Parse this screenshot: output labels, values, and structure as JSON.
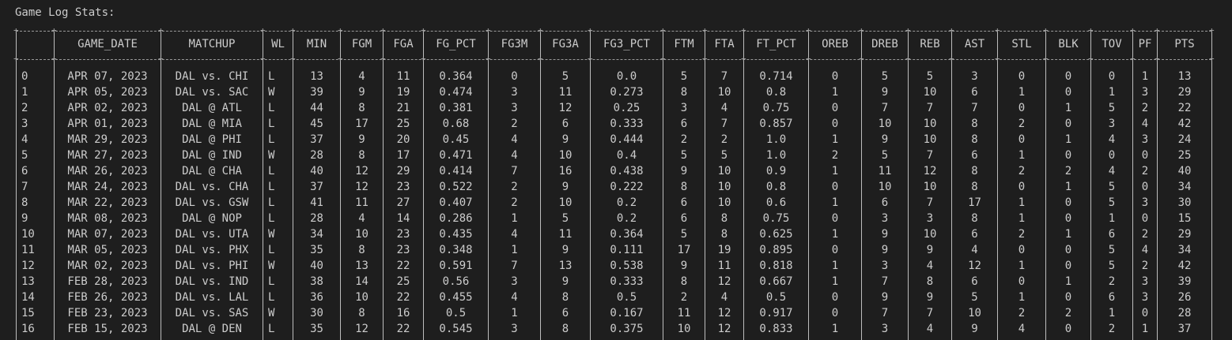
{
  "title": "Game Log Stats:",
  "columns": [
    "",
    "GAME_DATE",
    "MATCHUP",
    "WL",
    "MIN",
    "FGM",
    "FGA",
    "FG_PCT",
    "FG3M",
    "FG3A",
    "FG3_PCT",
    "FTM",
    "FTA",
    "FT_PCT",
    "OREB",
    "DREB",
    "REB",
    "AST",
    "STL",
    "BLK",
    "TOV",
    "PF",
    "PTS"
  ],
  "rows": [
    [
      "0",
      "APR 07, 2023",
      "DAL vs. CHI",
      "L",
      "13",
      "4",
      "11",
      "0.364",
      "0",
      "5",
      "0.0",
      "5",
      "7",
      "0.714",
      "0",
      "5",
      "5",
      "3",
      "0",
      "0",
      "0",
      "1",
      "13"
    ],
    [
      "1",
      "APR 05, 2023",
      "DAL vs. SAC",
      "W",
      "39",
      "9",
      "19",
      "0.474",
      "3",
      "11",
      "0.273",
      "8",
      "10",
      "0.8",
      "1",
      "9",
      "10",
      "6",
      "1",
      "0",
      "1",
      "3",
      "29"
    ],
    [
      "2",
      "APR 02, 2023",
      "DAL @ ATL",
      "L",
      "44",
      "8",
      "21",
      "0.381",
      "3",
      "12",
      "0.25",
      "3",
      "4",
      "0.75",
      "0",
      "7",
      "7",
      "7",
      "0",
      "1",
      "5",
      "2",
      "22"
    ],
    [
      "3",
      "APR 01, 2023",
      "DAL @ MIA",
      "L",
      "45",
      "17",
      "25",
      "0.68",
      "2",
      "6",
      "0.333",
      "6",
      "7",
      "0.857",
      "0",
      "10",
      "10",
      "8",
      "2",
      "0",
      "3",
      "4",
      "42"
    ],
    [
      "4",
      "MAR 29, 2023",
      "DAL @ PHI",
      "L",
      "37",
      "9",
      "20",
      "0.45",
      "4",
      "9",
      "0.444",
      "2",
      "2",
      "1.0",
      "1",
      "9",
      "10",
      "8",
      "0",
      "1",
      "4",
      "3",
      "24"
    ],
    [
      "5",
      "MAR 27, 2023",
      "DAL @ IND",
      "W",
      "28",
      "8",
      "17",
      "0.471",
      "4",
      "10",
      "0.4",
      "5",
      "5",
      "1.0",
      "2",
      "5",
      "7",
      "6",
      "1",
      "0",
      "0",
      "0",
      "25"
    ],
    [
      "6",
      "MAR 26, 2023",
      "DAL @ CHA",
      "L",
      "40",
      "12",
      "29",
      "0.414",
      "7",
      "16",
      "0.438",
      "9",
      "10",
      "0.9",
      "1",
      "11",
      "12",
      "8",
      "2",
      "2",
      "4",
      "2",
      "40"
    ],
    [
      "7",
      "MAR 24, 2023",
      "DAL vs. CHA",
      "L",
      "37",
      "12",
      "23",
      "0.522",
      "2",
      "9",
      "0.222",
      "8",
      "10",
      "0.8",
      "0",
      "10",
      "10",
      "8",
      "0",
      "1",
      "5",
      "0",
      "34"
    ],
    [
      "8",
      "MAR 22, 2023",
      "DAL vs. GSW",
      "L",
      "41",
      "11",
      "27",
      "0.407",
      "2",
      "10",
      "0.2",
      "6",
      "10",
      "0.6",
      "1",
      "6",
      "7",
      "17",
      "1",
      "0",
      "5",
      "3",
      "30"
    ],
    [
      "9",
      "MAR 08, 2023",
      "DAL @ NOP",
      "L",
      "28",
      "4",
      "14",
      "0.286",
      "1",
      "5",
      "0.2",
      "6",
      "8",
      "0.75",
      "0",
      "3",
      "3",
      "8",
      "1",
      "0",
      "1",
      "0",
      "15"
    ],
    [
      "10",
      "MAR 07, 2023",
      "DAL vs. UTA",
      "W",
      "34",
      "10",
      "23",
      "0.435",
      "4",
      "11",
      "0.364",
      "5",
      "8",
      "0.625",
      "1",
      "9",
      "10",
      "6",
      "2",
      "1",
      "6",
      "2",
      "29"
    ],
    [
      "11",
      "MAR 05, 2023",
      "DAL vs. PHX",
      "L",
      "35",
      "8",
      "23",
      "0.348",
      "1",
      "9",
      "0.111",
      "17",
      "19",
      "0.895",
      "0",
      "9",
      "9",
      "4",
      "0",
      "0",
      "5",
      "4",
      "34"
    ],
    [
      "12",
      "MAR 02, 2023",
      "DAL vs. PHI",
      "W",
      "40",
      "13",
      "22",
      "0.591",
      "7",
      "13",
      "0.538",
      "9",
      "11",
      "0.818",
      "1",
      "3",
      "4",
      "12",
      "1",
      "0",
      "5",
      "2",
      "42"
    ],
    [
      "13",
      "FEB 28, 2023",
      "DAL vs. IND",
      "L",
      "38",
      "14",
      "25",
      "0.56",
      "3",
      "9",
      "0.333",
      "8",
      "12",
      "0.667",
      "1",
      "7",
      "8",
      "6",
      "0",
      "1",
      "2",
      "3",
      "39"
    ],
    [
      "14",
      "FEB 26, 2023",
      "DAL vs. LAL",
      "L",
      "36",
      "10",
      "22",
      "0.455",
      "4",
      "8",
      "0.5",
      "2",
      "4",
      "0.5",
      "0",
      "9",
      "9",
      "5",
      "1",
      "0",
      "6",
      "3",
      "26"
    ],
    [
      "15",
      "FEB 23, 2023",
      "DAL vs. SAS",
      "W",
      "30",
      "8",
      "16",
      "0.5",
      "1",
      "6",
      "0.167",
      "11",
      "12",
      "0.917",
      "0",
      "7",
      "7",
      "10",
      "2",
      "2",
      "1",
      "0",
      "28"
    ],
    [
      "16",
      "FEB 15, 2023",
      "DAL @ DEN",
      "L",
      "35",
      "12",
      "22",
      "0.545",
      "3",
      "8",
      "0.375",
      "10",
      "12",
      "0.833",
      "1",
      "3",
      "4",
      "9",
      "4",
      "0",
      "2",
      "1",
      "37"
    ]
  ]
}
